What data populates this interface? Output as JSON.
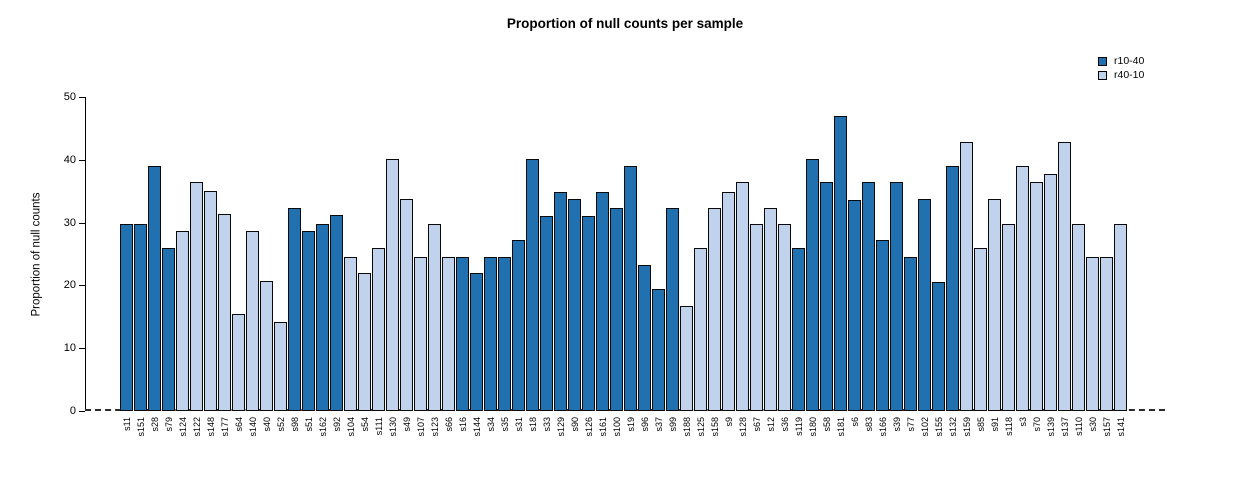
{
  "chart_data": {
    "type": "bar",
    "title": "Proportion of null counts per sample",
    "ylabel": "Proportion of null counts",
    "xlabel": "",
    "ylim": [
      0,
      50
    ],
    "yticks": [
      0,
      10,
      20,
      30,
      40,
      50
    ],
    "grid": false,
    "zero_line_style": "dashed",
    "legend_position": "top-right",
    "legend": [
      {
        "label": "r10-40",
        "color": "#2171B0"
      },
      {
        "label": "r40-10",
        "color": "#C1D3EC"
      }
    ],
    "series_colors": {
      "r10-40": "#2171B0",
      "r40-10": "#C1D3EC"
    },
    "samples": [
      {
        "id": "s11",
        "group": "r10-40",
        "value": 29.8
      },
      {
        "id": "s151",
        "group": "r10-40",
        "value": 29.8
      },
      {
        "id": "s28",
        "group": "r10-40",
        "value": 39.0
      },
      {
        "id": "s79",
        "group": "r10-40",
        "value": 26.0
      },
      {
        "id": "s124",
        "group": "r40-10",
        "value": 28.7
      },
      {
        "id": "s122",
        "group": "r40-10",
        "value": 36.4
      },
      {
        "id": "s148",
        "group": "r40-10",
        "value": 35.0
      },
      {
        "id": "s177",
        "group": "r40-10",
        "value": 31.3
      },
      {
        "id": "s64",
        "group": "r40-10",
        "value": 15.5
      },
      {
        "id": "s140",
        "group": "r40-10",
        "value": 28.6
      },
      {
        "id": "s40",
        "group": "r40-10",
        "value": 20.7
      },
      {
        "id": "s52",
        "group": "r40-10",
        "value": 14.2
      },
      {
        "id": "s98",
        "group": "r10-40",
        "value": 32.4
      },
      {
        "id": "s51",
        "group": "r10-40",
        "value": 28.6
      },
      {
        "id": "s162",
        "group": "r10-40",
        "value": 29.8
      },
      {
        "id": "s92",
        "group": "r10-40",
        "value": 31.2
      },
      {
        "id": "s104",
        "group": "r40-10",
        "value": 24.6
      },
      {
        "id": "s54",
        "group": "r40-10",
        "value": 22.0
      },
      {
        "id": "s111",
        "group": "r40-10",
        "value": 26.0
      },
      {
        "id": "s130",
        "group": "r40-10",
        "value": 40.2
      },
      {
        "id": "s49",
        "group": "r40-10",
        "value": 33.7
      },
      {
        "id": "s107",
        "group": "r40-10",
        "value": 24.6
      },
      {
        "id": "s123",
        "group": "r40-10",
        "value": 29.8
      },
      {
        "id": "s66",
        "group": "r40-10",
        "value": 24.6
      },
      {
        "id": "s16",
        "group": "r10-40",
        "value": 24.5
      },
      {
        "id": "s144",
        "group": "r10-40",
        "value": 21.9
      },
      {
        "id": "s34",
        "group": "r10-40",
        "value": 24.5
      },
      {
        "id": "s35",
        "group": "r10-40",
        "value": 24.5
      },
      {
        "id": "s31",
        "group": "r10-40",
        "value": 27.2
      },
      {
        "id": "s18",
        "group": "r10-40",
        "value": 40.1
      },
      {
        "id": "s33",
        "group": "r10-40",
        "value": 31.1
      },
      {
        "id": "s129",
        "group": "r10-40",
        "value": 34.9
      },
      {
        "id": "s90",
        "group": "r10-40",
        "value": 33.7
      },
      {
        "id": "s126",
        "group": "r10-40",
        "value": 31.1
      },
      {
        "id": "s161",
        "group": "r10-40",
        "value": 34.9
      },
      {
        "id": "s100",
        "group": "r10-40",
        "value": 32.4
      },
      {
        "id": "s19",
        "group": "r10-40",
        "value": 39.0
      },
      {
        "id": "s96",
        "group": "r10-40",
        "value": 23.2
      },
      {
        "id": "s37",
        "group": "r10-40",
        "value": 19.4
      },
      {
        "id": "s99",
        "group": "r10-40",
        "value": 32.4
      },
      {
        "id": "s188",
        "group": "r40-10",
        "value": 16.7
      },
      {
        "id": "s125",
        "group": "r40-10",
        "value": 25.9
      },
      {
        "id": "s158",
        "group": "r40-10",
        "value": 32.4
      },
      {
        "id": "s9",
        "group": "r40-10",
        "value": 34.9
      },
      {
        "id": "s128",
        "group": "r40-10",
        "value": 36.4
      },
      {
        "id": "s67",
        "group": "r40-10",
        "value": 29.7
      },
      {
        "id": "s12",
        "group": "r40-10",
        "value": 32.4
      },
      {
        "id": "s36",
        "group": "r40-10",
        "value": 29.7
      },
      {
        "id": "s119",
        "group": "r10-40",
        "value": 25.9
      },
      {
        "id": "s180",
        "group": "r10-40",
        "value": 40.1
      },
      {
        "id": "s58",
        "group": "r10-40",
        "value": 36.4
      },
      {
        "id": "s181",
        "group": "r10-40",
        "value": 46.9
      },
      {
        "id": "s6",
        "group": "r10-40",
        "value": 33.6
      },
      {
        "id": "s83",
        "group": "r10-40",
        "value": 36.4
      },
      {
        "id": "s166",
        "group": "r10-40",
        "value": 27.2
      },
      {
        "id": "s39",
        "group": "r10-40",
        "value": 36.4
      },
      {
        "id": "s77",
        "group": "r10-40",
        "value": 24.5
      },
      {
        "id": "s102",
        "group": "r10-40",
        "value": 33.7
      },
      {
        "id": "s155",
        "group": "r10-40",
        "value": 20.6
      },
      {
        "id": "s132",
        "group": "r10-40",
        "value": 39.0
      },
      {
        "id": "s159",
        "group": "r40-10",
        "value": 42.9
      },
      {
        "id": "s85",
        "group": "r40-10",
        "value": 25.9
      },
      {
        "id": "s91",
        "group": "r40-10",
        "value": 33.7
      },
      {
        "id": "s118",
        "group": "r40-10",
        "value": 29.7
      },
      {
        "id": "s3",
        "group": "r40-10",
        "value": 39.0
      },
      {
        "id": "s70",
        "group": "r40-10",
        "value": 36.5
      },
      {
        "id": "s139",
        "group": "r40-10",
        "value": 37.8
      },
      {
        "id": "s137",
        "group": "r40-10",
        "value": 42.9
      },
      {
        "id": "s110",
        "group": "r40-10",
        "value": 29.7
      },
      {
        "id": "s30",
        "group": "r40-10",
        "value": 24.5
      },
      {
        "id": "s157",
        "group": "r40-10",
        "value": 24.5
      },
      {
        "id": "s141",
        "group": "r40-10",
        "value": 29.7
      }
    ]
  }
}
